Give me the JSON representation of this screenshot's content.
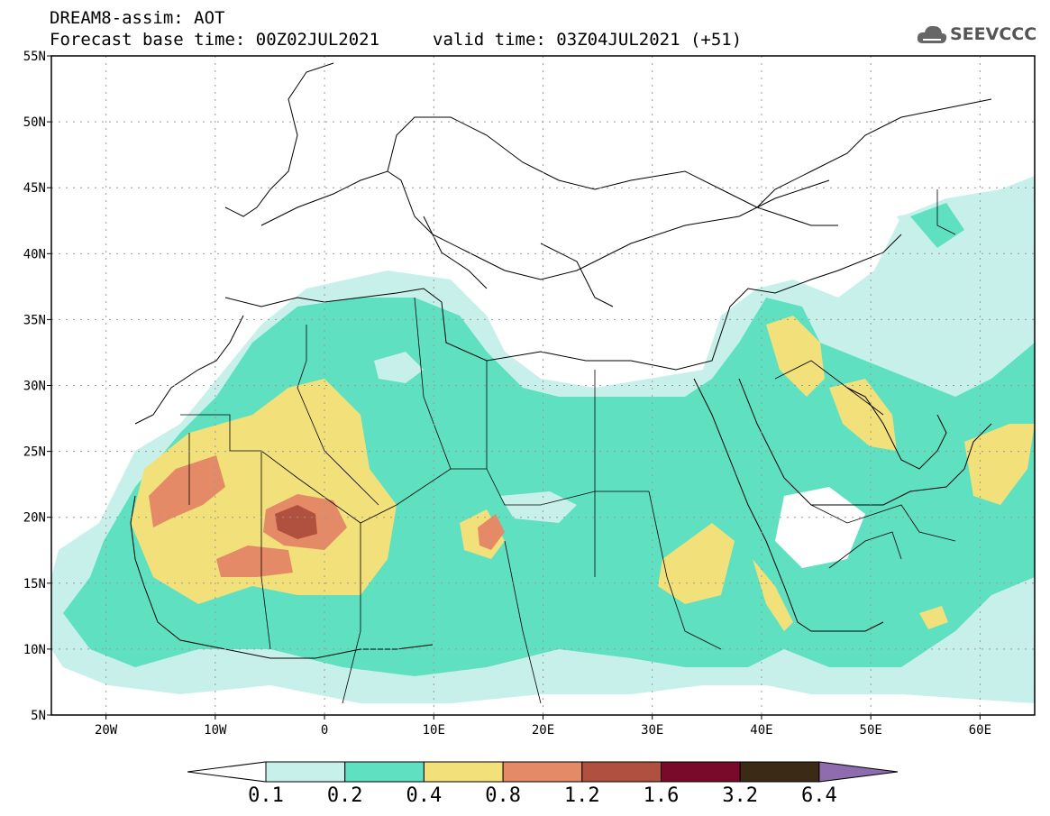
{
  "header": {
    "title_line1": "DREAM8-assim: AOT",
    "title_line2": "Forecast base time: 00Z02JUL2021",
    "valid_time": "valid time: 03Z04JUL2021 (+51)"
  },
  "logo": {
    "text": "SEEVCCC",
    "icon": "cloud-logo-icon"
  },
  "map": {
    "lon_range": [
      -25,
      65
    ],
    "lat_range": [
      5,
      55
    ],
    "grid": "dotted",
    "lat_labels": [
      "55N",
      "50N",
      "45N",
      "40N",
      "35N",
      "30N",
      "25N",
      "20N",
      "15N",
      "10N",
      "5N"
    ],
    "lon_labels": [
      "20W",
      "10W",
      "0",
      "10E",
      "20E",
      "30E",
      "40E",
      "50E",
      "60E"
    ]
  },
  "colorbar": {
    "levels": [
      "0.1",
      "0.2",
      "0.4",
      "0.8",
      "1.2",
      "1.6",
      "3.2",
      "6.4"
    ],
    "colors": [
      "#c8f0ea",
      "#5fe0c0",
      "#f2e07a",
      "#e48a66",
      "#b0503e",
      "#7a0a2a",
      "#3a2a16",
      "#8e6cae"
    ]
  }
}
